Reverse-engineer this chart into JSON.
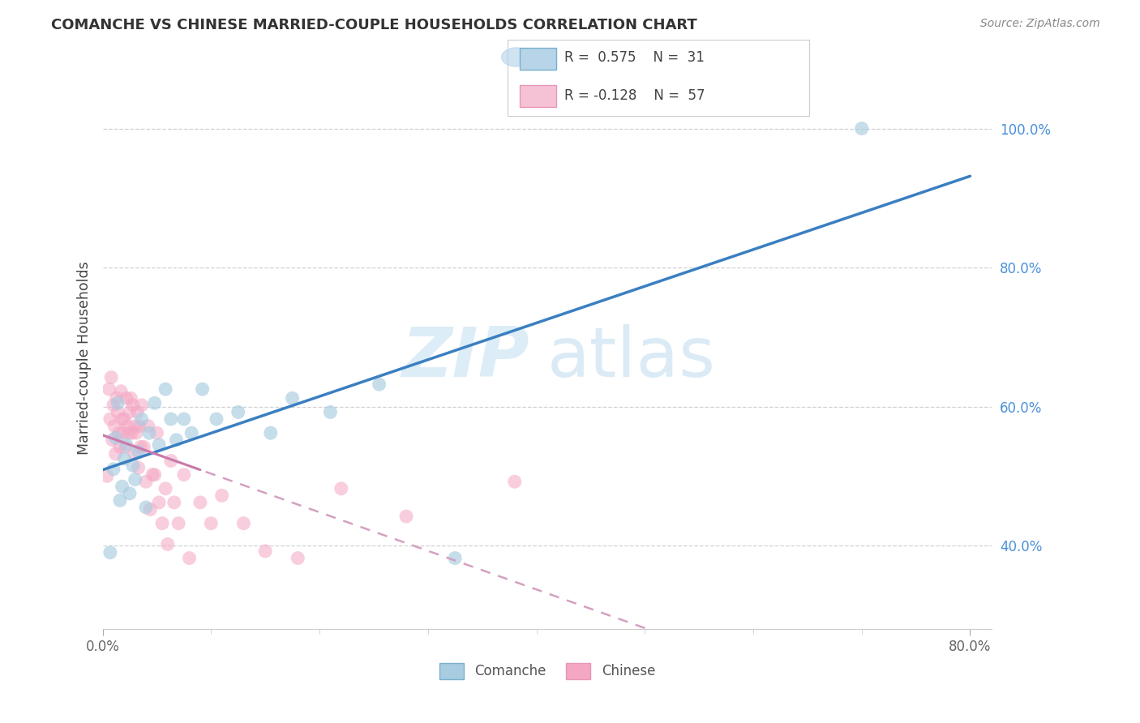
{
  "title": "COMANCHE VS CHINESE MARRIED-COUPLE HOUSEHOLDS CORRELATION CHART",
  "source": "Source: ZipAtlas.com",
  "ylabel": "Married-couple Households",
  "xlim": [
    0.0,
    0.82
  ],
  "ylim": [
    0.28,
    1.06
  ],
  "x_tick_labels": [
    "0.0%",
    "80.0%"
  ],
  "y_ticks_right": [
    0.4,
    0.6,
    0.8,
    1.0
  ],
  "y_tick_labels_right": [
    "40.0%",
    "60.0%",
    "80.0%",
    "100.0%"
  ],
  "comanche_R": 0.575,
  "comanche_N": 31,
  "chinese_R": -0.128,
  "chinese_N": 57,
  "comanche_scatter_color": "#a8cce0",
  "chinese_scatter_color": "#f4a7c3",
  "comanche_line_color": "#3a7fc1",
  "chinese_line_color": "#d4a0c0",
  "watermark_zip": "ZIP",
  "watermark_atlas": "atlas",
  "comanche_x": [
    0.007,
    0.01,
    0.012,
    0.014,
    0.016,
    0.018,
    0.02,
    0.022,
    0.025,
    0.028,
    0.03,
    0.033,
    0.036,
    0.04,
    0.043,
    0.048,
    0.052,
    0.058,
    0.063,
    0.068,
    0.075,
    0.082,
    0.092,
    0.105,
    0.125,
    0.155,
    0.175,
    0.21,
    0.255,
    0.325,
    0.7
  ],
  "comanche_y": [
    0.39,
    0.51,
    0.555,
    0.605,
    0.465,
    0.485,
    0.525,
    0.545,
    0.475,
    0.515,
    0.495,
    0.535,
    0.582,
    0.455,
    0.562,
    0.605,
    0.545,
    0.625,
    0.582,
    0.552,
    0.582,
    0.562,
    0.625,
    0.582,
    0.592,
    0.562,
    0.612,
    0.592,
    0.632,
    0.382,
    1.0
  ],
  "chinese_x": [
    0.004,
    0.006,
    0.007,
    0.008,
    0.009,
    0.01,
    0.011,
    0.012,
    0.013,
    0.014,
    0.015,
    0.016,
    0.017,
    0.018,
    0.019,
    0.02,
    0.021,
    0.022,
    0.023,
    0.024,
    0.025,
    0.026,
    0.027,
    0.028,
    0.029,
    0.03,
    0.031,
    0.032,
    0.033,
    0.034,
    0.035,
    0.036,
    0.038,
    0.04,
    0.042,
    0.044,
    0.046,
    0.048,
    0.05,
    0.052,
    0.055,
    0.058,
    0.06,
    0.063,
    0.066,
    0.07,
    0.075,
    0.08,
    0.09,
    0.1,
    0.11,
    0.13,
    0.15,
    0.18,
    0.22,
    0.28,
    0.38
  ],
  "chinese_y": [
    0.5,
    0.625,
    0.582,
    0.642,
    0.552,
    0.602,
    0.572,
    0.532,
    0.612,
    0.592,
    0.562,
    0.542,
    0.622,
    0.582,
    0.562,
    0.582,
    0.542,
    0.612,
    0.572,
    0.562,
    0.592,
    0.612,
    0.562,
    0.602,
    0.532,
    0.572,
    0.562,
    0.592,
    0.512,
    0.572,
    0.542,
    0.602,
    0.542,
    0.492,
    0.572,
    0.452,
    0.502,
    0.502,
    0.562,
    0.462,
    0.432,
    0.482,
    0.402,
    0.522,
    0.462,
    0.432,
    0.502,
    0.382,
    0.462,
    0.432,
    0.472,
    0.432,
    0.392,
    0.382,
    0.482,
    0.442,
    0.492
  ]
}
